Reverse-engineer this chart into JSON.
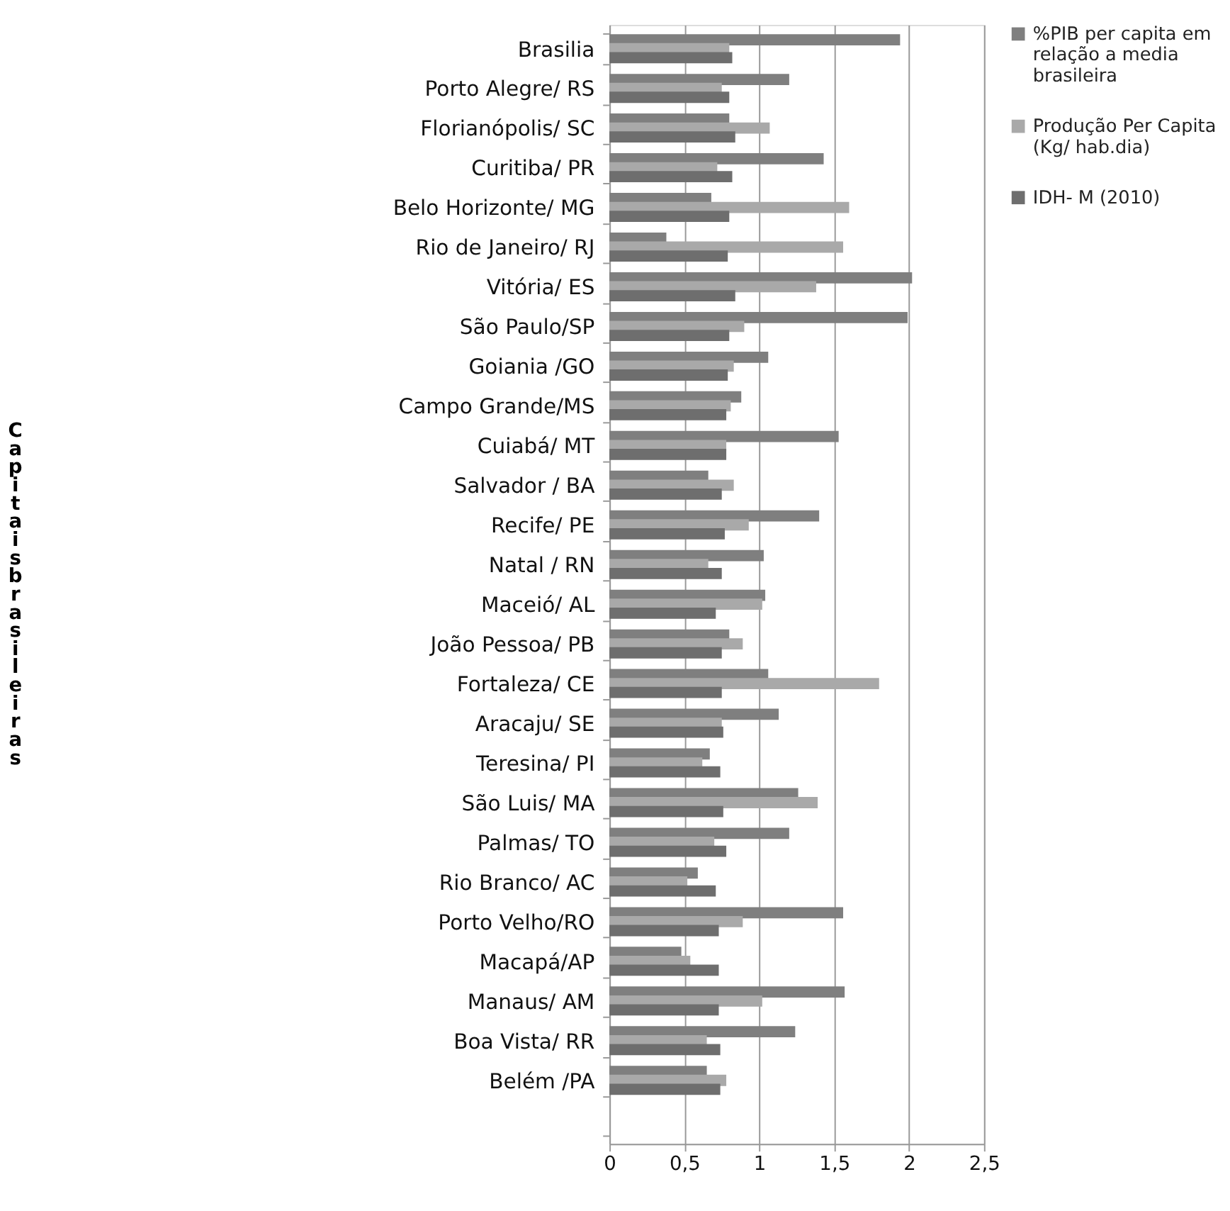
{
  "chart_data": {
    "type": "bar",
    "orientation": "horizontal",
    "ylabel": "Capitais  brasileiras",
    "categories": [
      "Brasilia",
      "Porto Alegre/  RS",
      "Florianópolis/ SC",
      "Curitiba/ PR",
      "Belo Horizonte/ MG",
      "Rio de Janeiro/ RJ",
      "Vitória/ ES",
      "São Paulo/SP",
      "Goiania /GO",
      "Campo Grande/MS",
      "Cuiabá/  MT",
      "Salvador  / BA",
      "Recife/ PE",
      "Natal / RN",
      "Maceió/ AL",
      "João Pessoa/ PB",
      "Fortaleza/ CE",
      "Aracaju/ SE",
      "Teresina/ PI",
      "São Luis/ MA",
      "Palmas/ TO",
      "Rio Branco/ AC",
      "Porto Velho/RO",
      "Macapá/AP",
      "Manaus/ AM",
      "Boa Vista/ RR",
      "Belém /PA",
      null
    ],
    "series": [
      {
        "name": "%PIB per capita em relação  a media brasileira",
        "color": "#7f7f7f",
        "values": [
          1.94,
          1.2,
          0.8,
          1.43,
          0.68,
          0.38,
          2.02,
          1.99,
          1.06,
          0.88,
          1.53,
          0.66,
          1.4,
          1.03,
          1.04,
          0.8,
          1.06,
          1.13,
          0.67,
          1.26,
          1.2,
          0.59,
          1.56,
          0.48,
          1.57,
          1.24,
          0.65,
          null
        ]
      },
      {
        "name": "Produção  Per Capita (Kg/ hab.dia)",
        "color": "#a9a9a9",
        "values": [
          0.8,
          0.75,
          1.07,
          0.72,
          1.6,
          1.56,
          1.38,
          0.9,
          0.83,
          0.81,
          0.78,
          0.83,
          0.93,
          0.66,
          1.02,
          0.89,
          1.8,
          0.75,
          0.62,
          1.39,
          0.7,
          0.52,
          0.89,
          0.54,
          1.02,
          0.65,
          0.78,
          null
        ]
      },
      {
        "name": "IDH- M (2010)",
        "color": "#6e6e6e",
        "values": [
          0.82,
          0.8,
          0.84,
          0.82,
          0.8,
          0.79,
          0.84,
          0.8,
          0.79,
          0.78,
          0.78,
          0.75,
          0.77,
          0.75,
          0.71,
          0.75,
          0.75,
          0.76,
          0.74,
          0.76,
          0.78,
          0.71,
          0.73,
          0.73,
          0.73,
          0.74,
          0.74,
          null
        ]
      }
    ],
    "xlim": [
      0,
      2.5
    ],
    "xticks": [
      0,
      {
        "value": 0.5,
        "label": "0,5"
      },
      1,
      {
        "value": 1.5,
        "label": "1,5"
      },
      2,
      {
        "value": 2.5,
        "label": "2,5"
      }
    ],
    "grid": "x",
    "legend": "right"
  }
}
